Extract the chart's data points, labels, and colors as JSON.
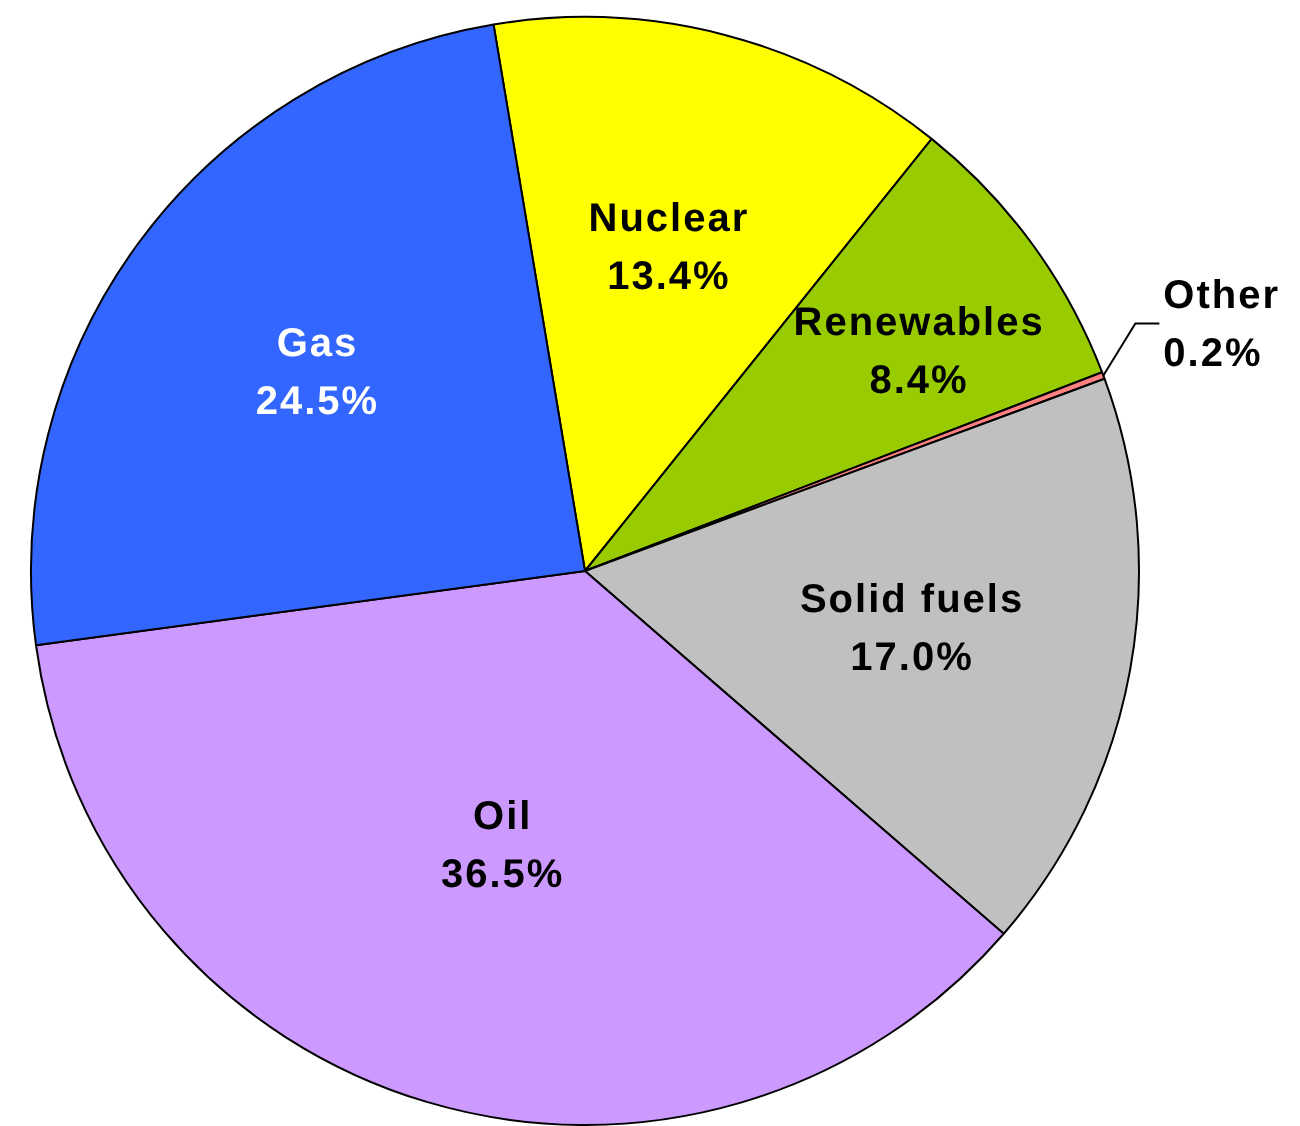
{
  "chart_data": {
    "type": "pie",
    "categories": [
      "Nuclear",
      "Renewables",
      "Other",
      "Solid fuels",
      "Oil",
      "Gas"
    ],
    "values": [
      13.4,
      8.4,
      0.2,
      17.0,
      36.5,
      24.5
    ],
    "value_labels": [
      "13.4%",
      "8.4%",
      "0.2%",
      "17.0%",
      "36.5%",
      "24.5%"
    ],
    "colors": [
      "#ffff00",
      "#99cc00",
      "#ff8080",
      "#c0c0c0",
      "#cc99ff",
      "#3366ff"
    ]
  }
}
